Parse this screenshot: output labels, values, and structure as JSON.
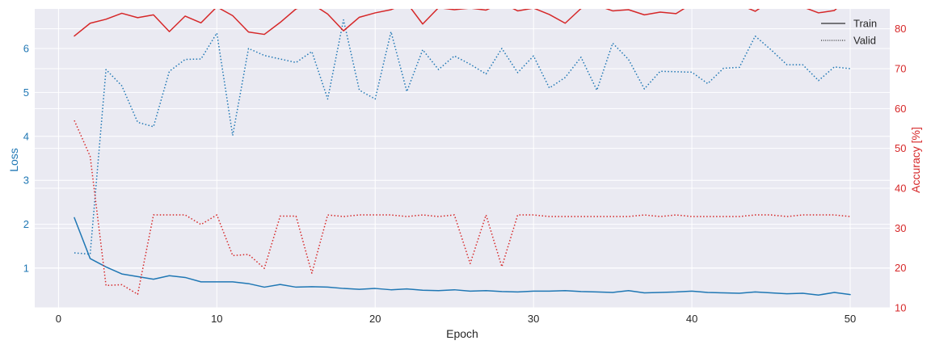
{
  "chart_data": {
    "type": "line",
    "xlabel": "Epoch",
    "ylabel_left": "Loss",
    "ylabel_right": "Accuracy [%]",
    "xlim": [
      -1.5,
      52.5
    ],
    "ylim_left": [
      0.1,
      6.9
    ],
    "ylim_right": [
      10,
      85
    ],
    "xticks": [
      0,
      10,
      20,
      30,
      40,
      50
    ],
    "yticks_left": [
      1,
      2,
      3,
      4,
      5,
      6
    ],
    "yticks_right": [
      10,
      20,
      30,
      40,
      50,
      60,
      70,
      80
    ],
    "grid": true,
    "legend_position": "top-right",
    "legend": [
      {
        "label": "Train",
        "style": "solid"
      },
      {
        "label": "Valid",
        "style": "dotted"
      }
    ],
    "colors": {
      "loss": "#1f77b4",
      "accuracy": "#d62728",
      "background": "#eaeaf2",
      "grid": "#ffffff"
    },
    "x": [
      1,
      2,
      3,
      4,
      5,
      6,
      7,
      8,
      9,
      10,
      11,
      12,
      13,
      14,
      15,
      16,
      17,
      18,
      19,
      20,
      21,
      22,
      23,
      24,
      25,
      26,
      27,
      28,
      29,
      30,
      31,
      32,
      33,
      34,
      35,
      36,
      37,
      38,
      39,
      40,
      41,
      42,
      43,
      44,
      45,
      46,
      47,
      48,
      49,
      50
    ],
    "series": [
      {
        "name": "Train Loss",
        "axis": "left",
        "style": "solid",
        "color": "#1f77b4",
        "values": [
          2.15,
          1.22,
          1.03,
          0.87,
          0.81,
          0.75,
          0.83,
          0.79,
          0.69,
          0.69,
          0.69,
          0.65,
          0.57,
          0.63,
          0.57,
          0.58,
          0.57,
          0.54,
          0.52,
          0.54,
          0.51,
          0.53,
          0.5,
          0.49,
          0.51,
          0.48,
          0.49,
          0.47,
          0.46,
          0.48,
          0.48,
          0.49,
          0.47,
          0.46,
          0.45,
          0.49,
          0.44,
          0.45,
          0.46,
          0.48,
          0.45,
          0.44,
          0.43,
          0.46,
          0.44,
          0.42,
          0.43,
          0.39,
          0.45,
          0.4
        ]
      },
      {
        "name": "Valid Loss",
        "axis": "left",
        "style": "dotted",
        "color": "#1f77b4",
        "values": [
          1.35,
          1.32,
          5.52,
          5.15,
          4.32,
          4.22,
          5.48,
          5.75,
          5.76,
          6.35,
          4.02,
          6.0,
          5.84,
          5.76,
          5.68,
          5.93,
          4.85,
          6.65,
          5.05,
          4.85,
          6.38,
          5.02,
          5.97,
          5.52,
          5.83,
          5.64,
          5.42,
          6.0,
          5.45,
          5.83,
          5.1,
          5.34,
          5.8,
          5.05,
          6.12,
          5.75,
          5.08,
          5.48,
          5.47,
          5.46,
          5.2,
          5.55,
          5.57,
          6.28,
          5.97,
          5.63,
          5.63,
          5.27,
          5.58,
          5.54
        ]
      },
      {
        "name": "Train Accuracy",
        "axis": "right",
        "style": "solid",
        "color": "#d62728",
        "values": [
          78.2,
          81.4,
          82.4,
          83.9,
          82.8,
          83.5,
          79.3,
          83.2,
          81.5,
          85.5,
          83.3,
          79.2,
          78.6,
          81.6,
          85.0,
          86.3,
          83.7,
          79.5,
          82.9,
          84.0,
          84.8,
          86.5,
          81.2,
          85.3,
          84.8,
          85.2,
          84.7,
          86.5,
          84.5,
          85.2,
          83.6,
          81.4,
          85.1,
          85.9,
          84.5,
          84.8,
          83.5,
          84.2,
          83.8,
          86.3,
          85.8,
          86.6,
          86.1,
          84.4,
          87.0,
          86.0,
          85.5,
          84.0,
          84.6,
          88.0
        ]
      },
      {
        "name": "Valid Accuracy",
        "axis": "right",
        "style": "dotted",
        "color": "#d62728",
        "values": [
          57.0,
          48.0,
          15.6,
          15.8,
          13.4,
          33.3,
          33.3,
          33.3,
          30.9,
          33.3,
          23.1,
          23.4,
          19.9,
          33.0,
          33.0,
          18.7,
          33.3,
          32.9,
          33.3,
          33.3,
          33.3,
          32.9,
          33.3,
          32.9,
          33.3,
          21.1,
          33.3,
          20.3,
          33.3,
          33.3,
          32.9,
          32.9,
          32.9,
          32.9,
          32.9,
          32.9,
          33.3,
          32.9,
          33.3,
          32.9,
          32.9,
          32.9,
          32.9,
          33.3,
          33.3,
          32.9,
          33.3,
          33.3,
          33.3,
          32.9
        ]
      }
    ]
  }
}
